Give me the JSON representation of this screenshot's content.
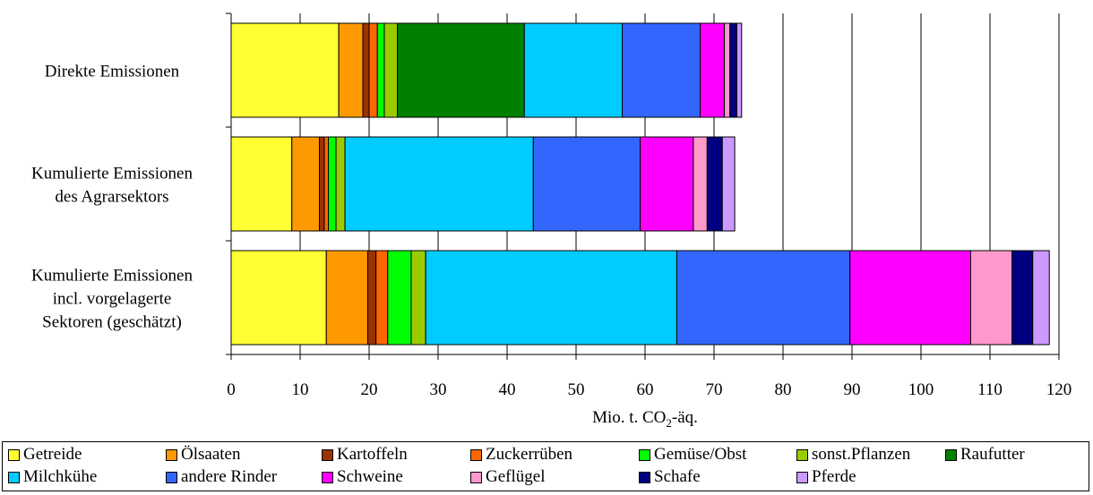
{
  "chart_data": {
    "type": "bar",
    "orientation": "horizontal",
    "stacked": true,
    "categories": [
      "Direkte Emissionen",
      "Kumulierte Emissionen des Agrarsektors",
      "Kumulierte Emissionen incl. vorgelagerte Sektoren (geschätzt)"
    ],
    "category_lines": [
      [
        "Direkte Emissionen"
      ],
      [
        "Kumulierte Emissionen",
        "des Agrarsektors"
      ],
      [
        "Kumulierte Emissionen",
        "incl. vorgelagerte",
        "Sektoren (geschätzt)"
      ]
    ],
    "series": [
      {
        "name": "Getreide",
        "color": "#FFFF33",
        "values": [
          15.6,
          8.8,
          13.8
        ]
      },
      {
        "name": "Ölsaaten",
        "color": "#FF9900",
        "values": [
          3.5,
          4.0,
          6.0
        ]
      },
      {
        "name": "Kartoffeln",
        "color": "#993300",
        "values": [
          0.9,
          0.7,
          1.2
        ]
      },
      {
        "name": "Zuckerrüben",
        "color": "#FF6600",
        "values": [
          1.2,
          0.6,
          1.7
        ]
      },
      {
        "name": "Gemüse/Obst",
        "color": "#00FF00",
        "values": [
          1.0,
          1.1,
          3.4
        ]
      },
      {
        "name": "sonst.Pflanzen",
        "color": "#99CC00",
        "values": [
          1.9,
          1.3,
          2.1
        ]
      },
      {
        "name": "Raufutter",
        "color": "#008000",
        "values": [
          18.4,
          0.0,
          0.0
        ]
      },
      {
        "name": "Milchkühe",
        "color": "#00CCFF",
        "values": [
          14.2,
          27.3,
          36.4
        ]
      },
      {
        "name": "andere Rinder",
        "color": "#3366FF",
        "values": [
          11.3,
          15.5,
          25.1
        ]
      },
      {
        "name": "Schweine",
        "color": "#FF00FF",
        "values": [
          3.5,
          7.7,
          17.5
        ]
      },
      {
        "name": "Geflügel",
        "color": "#FF99CC",
        "values": [
          0.8,
          2.0,
          6.0
        ]
      },
      {
        "name": "Schafe",
        "color": "#000080",
        "values": [
          1.0,
          2.2,
          3.0
        ]
      },
      {
        "name": "Pferde",
        "color": "#CC99FF",
        "values": [
          0.7,
          1.8,
          2.4
        ]
      }
    ],
    "xlabel": "Mio. t. CO₂-äq.",
    "xlabel_main": "Mio. t. CO",
    "xlabel_sub": "2",
    "xlabel_tail": "-äq.",
    "xlim": [
      0,
      120
    ],
    "xticks": [
      0,
      10,
      20,
      30,
      40,
      50,
      60,
      70,
      80,
      90,
      100,
      110,
      120
    ],
    "xtick_labels": [
      "0",
      "10",
      "20",
      "30",
      "40",
      "50",
      "60",
      "70",
      "80",
      "90",
      "100",
      "110",
      "120"
    ],
    "grid": "vertical",
    "legend_position": "bottom"
  }
}
